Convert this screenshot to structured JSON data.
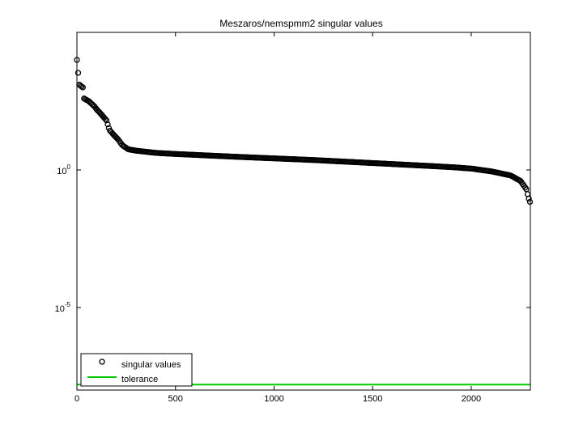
{
  "chart_data": {
    "type": "scatter",
    "title": "Meszaros/nemspmm2 singular values",
    "xlabel": "",
    "ylabel": "",
    "y_scale": "log",
    "xlim": [
      0,
      2300
    ],
    "ylim_log10": [
      -8,
      5
    ],
    "x_ticks": [
      {
        "value": 0,
        "label": "0"
      },
      {
        "value": 500,
        "label": "500"
      },
      {
        "value": 1000,
        "label": "1000"
      },
      {
        "value": 1500,
        "label": "1500"
      },
      {
        "value": 2000,
        "label": "2000"
      }
    ],
    "y_ticks": [
      {
        "exp": 0,
        "base": "10",
        "sup": "0"
      },
      {
        "exp": -5,
        "base": "10",
        "sup": "-5"
      }
    ],
    "grid": false,
    "legend": {
      "placement": "bottom-left",
      "entries": [
        {
          "label": "singular values",
          "marker": "circle",
          "color": "#000000"
        },
        {
          "label": "tolerance",
          "marker": "line",
          "color": "#00cc00"
        }
      ]
    },
    "series": [
      {
        "name": "singular values",
        "style": "circle-markers",
        "color": "#000000",
        "n_points": 2300,
        "curve_log10": [
          [
            0,
            4.0
          ],
          [
            5,
            3.6
          ],
          [
            12,
            3.1
          ],
          [
            30,
            3.0
          ],
          [
            35,
            2.6
          ],
          [
            60,
            2.5
          ],
          [
            90,
            2.3
          ],
          [
            100,
            2.2
          ],
          [
            120,
            2.05
          ],
          [
            150,
            1.8
          ],
          [
            165,
            1.45
          ],
          [
            190,
            1.25
          ],
          [
            210,
            1.1
          ],
          [
            230,
            0.9
          ],
          [
            260,
            0.75
          ],
          [
            300,
            0.7
          ],
          [
            400,
            0.62
          ],
          [
            500,
            0.58
          ],
          [
            800,
            0.48
          ],
          [
            1000,
            0.42
          ],
          [
            1200,
            0.36
          ],
          [
            1500,
            0.25
          ],
          [
            1800,
            0.14
          ],
          [
            1900,
            0.1
          ],
          [
            2000,
            0.05
          ],
          [
            2100,
            -0.05
          ],
          [
            2200,
            -0.2
          ],
          [
            2250,
            -0.4
          ],
          [
            2280,
            -0.7
          ],
          [
            2290,
            -1.0
          ],
          [
            2300,
            -1.2
          ]
        ]
      },
      {
        "name": "tolerance",
        "style": "line",
        "color": "#00cc00",
        "log10_value": -7.8
      }
    ]
  }
}
